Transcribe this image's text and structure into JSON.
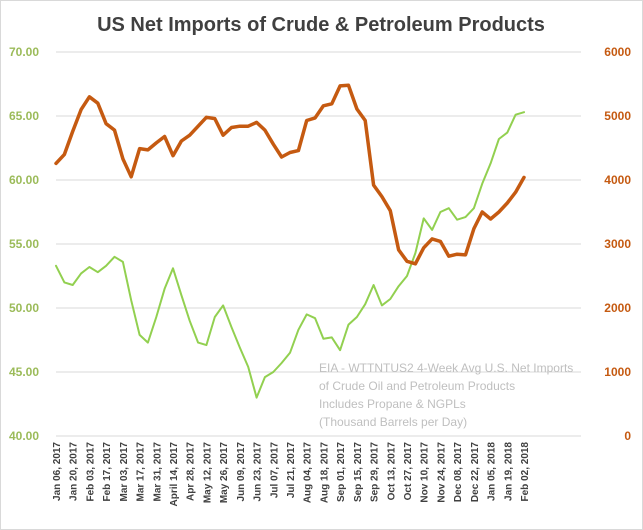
{
  "chart_data": {
    "type": "line",
    "title": "US Net Imports of Crude & Petroleum Products",
    "annotation": [
      "EIA - WTTNTUS2 4-Week Avg U.S. Net Imports",
      "of Crude Oil and Petroleum Products",
      "Includes Propane & NGPLs",
      "(Thousand Barrels per Day)"
    ],
    "x": [
      "Jan 06, 2017",
      "Jan 13, 2017",
      "Jan 20, 2017",
      "Jan 27, 2017",
      "Feb 03, 2017",
      "Feb 10, 2017",
      "Feb 17, 2017",
      "Feb 24, 2017",
      "Mar 03, 2017",
      "Mar 10, 2017",
      "Mar 17, 2017",
      "Mar 24, 2017",
      "Mar 31, 2017",
      "Apr 07, 2017",
      "April 14, 2017",
      "Apr 21, 2017",
      "Apr 28, 2017",
      "May 05, 2017",
      "May 12, 2017",
      "May 19, 2017",
      "May 26, 2017",
      "Jun 02, 2017",
      "Jun 09, 2017",
      "Jun 16, 2017",
      "Jun 23, 2017",
      "Jun 30, 2017",
      "Jul 07, 2017",
      "Jul 14, 2017",
      "Jul 21, 2017",
      "Jul 28, 2017",
      "Aug 04, 2017",
      "Aug 11, 2017",
      "Aug 18, 2017",
      "Aug 25, 2017",
      "Sep 01, 2017",
      "Sep 08, 2017",
      "Sep 15, 2017",
      "Sep 22, 2017",
      "Sep 29, 2017",
      "Oct 06, 2017",
      "Oct 13, 2017",
      "Oct 20, 2017",
      "Oct 27, 2017",
      "Nov 03, 2017",
      "Nov 10, 2017",
      "Nov 17, 2017",
      "Nov 24, 2017",
      "Dec 01, 2017",
      "Dec 08, 2017",
      "Dec 15, 2017",
      "Dec 22, 2017",
      "Dec 29, 2017",
      "Jan 05, 2018",
      "Jan 12, 2018",
      "Jan 19, 2018",
      "Jan 26, 2018",
      "Feb 02, 2018"
    ],
    "x_tick_labels": [
      "Jan 06, 2017",
      "Jan 20, 2017",
      "Feb 03, 2017",
      "Feb 17, 2017",
      "Mar 03, 2017",
      "Mar 17, 2017",
      "Mar 31, 2017",
      "April 14, 2017",
      "Apr 28, 2017",
      "May 12, 2017",
      "May 26, 2017",
      "Jun 09, 2017",
      "Jun 23, 2017",
      "Jul 07, 2017",
      "Jul 21, 2017",
      "Aug 04, 2017",
      "Aug 18, 2017",
      "Sep 01, 2017",
      "Sep 15, 2017",
      "Sep 29, 2017",
      "Oct 13, 2017",
      "Oct 27, 2017",
      "Nov 10, 2017",
      "Nov 24, 2017",
      "Dec 08, 2017",
      "Dec 22, 2017",
      "Jan 05, 2018",
      "Jan 19, 2018",
      "Feb 02, 2018"
    ],
    "y_left": {
      "ylim": [
        40,
        70
      ],
      "ticks": [
        "40.00",
        "45.00",
        "50.00",
        "55.00",
        "60.00",
        "65.00",
        "70.00"
      ]
    },
    "y_right": {
      "ylim": [
        0,
        6000
      ],
      "ticks": [
        "0",
        "1000",
        "2000",
        "3000",
        "4000",
        "5000",
        "6000"
      ]
    },
    "series": [
      {
        "name": "Green series (left axis)",
        "axis": "left",
        "color": "#92d050",
        "values": [
          53.3,
          52.0,
          51.8,
          52.7,
          53.2,
          52.8,
          53.3,
          54.0,
          53.6,
          50.6,
          47.9,
          47.3,
          49.3,
          51.5,
          53.1,
          51.0,
          49.0,
          47.3,
          47.1,
          49.3,
          50.2,
          48.5,
          46.9,
          45.4,
          43.0,
          44.6,
          45.0,
          45.7,
          46.5,
          48.3,
          49.5,
          49.2,
          47.6,
          47.7,
          46.7,
          48.7,
          49.3,
          50.3,
          51.8,
          50.2,
          50.7,
          51.7,
          52.5,
          54.3,
          57.0,
          56.1,
          57.5,
          57.8,
          56.9,
          57.1,
          57.8,
          59.7,
          61.3,
          63.2,
          63.7,
          65.1,
          65.3
        ]
      },
      {
        "name": "Orange series (right axis)",
        "axis": "right",
        "color": "#c55a11",
        "values": [
          4260,
          4400,
          4760,
          5100,
          5300,
          5200,
          4880,
          4780,
          4330,
          4050,
          4490,
          4470,
          4580,
          4680,
          4380,
          4610,
          4700,
          4840,
          4980,
          4960,
          4700,
          4820,
          4840,
          4840,
          4900,
          4780,
          4560,
          4360,
          4430,
          4460,
          4930,
          4970,
          5160,
          5190,
          5470,
          5480,
          5110,
          4930,
          3920,
          3740,
          3520,
          2910,
          2730,
          2690,
          2940,
          3080,
          3040,
          2810,
          2840,
          2830,
          3240,
          3500,
          3390,
          3500,
          3640,
          3810,
          4040
        ]
      }
    ]
  }
}
